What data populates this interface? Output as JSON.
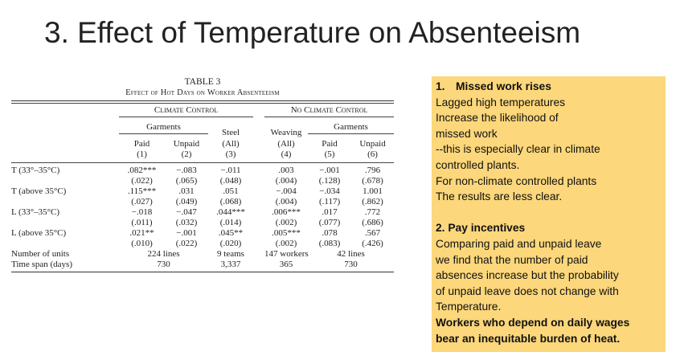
{
  "slide": {
    "title": "3. Effect of Temperature on Absenteeism"
  },
  "table": {
    "title": "TABLE 3",
    "subtitle": "Effect of Hot Days on Worker Absenteeism",
    "group_headers": {
      "climate": "Climate Control",
      "no_climate": "No Climate Control"
    },
    "sub_headers": {
      "garments_a": "Garments",
      "steel": "Steel",
      "weaving": "Weaving",
      "garments_b": "Garments"
    },
    "col_labels": [
      "Paid",
      "Unpaid",
      "(All)",
      "(All)",
      "Paid",
      "Unpaid"
    ],
    "col_numbers": [
      "(1)",
      "(2)",
      "(3)",
      "(4)",
      "(5)",
      "(6)"
    ],
    "rows": [
      {
        "label": "T (33°–35°C)",
        "coef": [
          ".082***",
          "−.083",
          "−.011",
          ".003",
          "−.001",
          ".796"
        ],
        "se": [
          "(.022)",
          "(.065)",
          "(.048)",
          "(.004)",
          "(.128)",
          "(.678)"
        ]
      },
      {
        "label": "T (above 35°C)",
        "coef": [
          ".115***",
          ".031",
          ".051",
          "−.004",
          "−.034",
          "1.001"
        ],
        "se": [
          "(.027)",
          "(.049)",
          "(.068)",
          "(.004)",
          "(.117)",
          "(.862)"
        ]
      },
      {
        "label": "L (33°–35°C)",
        "coef": [
          "−.018",
          "−.047",
          ".044***",
          ".006***",
          ".017",
          ".772"
        ],
        "se": [
          "(.011)",
          "(.032)",
          "(.014)",
          "(.002)",
          "(.077)",
          "(.686)"
        ]
      },
      {
        "label": "L (above 35°C)",
        "coef": [
          ".021**",
          "−.001",
          ".045**",
          ".005***",
          ".078",
          ".567"
        ],
        "se": [
          "(.010)",
          "(.022)",
          "(.020)",
          "(.002)",
          "(.083)",
          "(.426)"
        ]
      }
    ],
    "units": {
      "label": "Number of units",
      "garments_a": "224 lines",
      "steel": "9 teams",
      "weaving": "147 workers",
      "garments_b": "42 lines"
    },
    "span": {
      "label": "Time span (days)",
      "garments_a": "730",
      "steel": "3,337",
      "weaving": "365",
      "garments_b": "730"
    }
  },
  "callout": {
    "s1_num": "1.",
    "s1_head": "Missed work rises",
    "s1_lines": [
      "Lagged high temperatures",
      "Increase the likelihood of",
      "missed work",
      "--this is especially clear in climate",
      "controlled plants.",
      "For non-climate controlled plants",
      "The results are less clear."
    ],
    "s2_head": "2. Pay incentives",
    "s2_lines": [
      "Comparing paid and unpaid leave",
      "we find that the number of paid",
      "absences increase but the probability",
      "of unpaid leave does not change with",
      "Temperature."
    ],
    "s2_bold": [
      "Workers who depend on daily wages",
      "bear an inequitable burden of heat."
    ],
    "background": "#fcd77b"
  }
}
